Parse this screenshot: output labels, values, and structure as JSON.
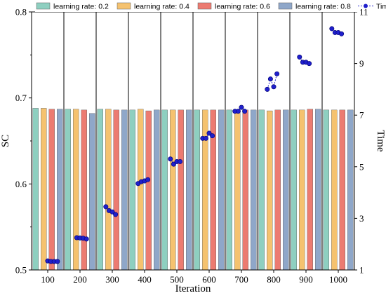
{
  "chart_data": {
    "type": "bar",
    "xlabel": "Iteration",
    "ylabel": "SC",
    "y2label": "Time",
    "categories": [
      "100",
      "200",
      "300",
      "400",
      "500",
      "600",
      "700",
      "800",
      "900",
      "1000"
    ],
    "ylim": [
      0.5,
      0.8
    ],
    "yticks": [
      "0.5",
      "0.6",
      "0.7",
      "0.8"
    ],
    "y2lim": [
      1,
      11
    ],
    "y2ticks": [
      "1",
      "3",
      "5",
      "7",
      "9",
      "11"
    ],
    "grid": false,
    "legend_position": "top",
    "series": [
      {
        "name": "learning rate: 0.2",
        "color": "#8ecfc0",
        "values": [
          0.688,
          0.687,
          0.687,
          0.686,
          0.686,
          0.686,
          0.686,
          0.686,
          0.686,
          0.686
        ]
      },
      {
        "name": "learning rate: 0.4",
        "color": "#f5c26f",
        "values": [
          0.688,
          0.687,
          0.687,
          0.687,
          0.686,
          0.686,
          0.686,
          0.685,
          0.686,
          0.686
        ]
      },
      {
        "name": "learning rate: 0.6",
        "color": "#ec7b71",
        "values": [
          0.687,
          0.686,
          0.686,
          0.685,
          0.686,
          0.686,
          0.686,
          0.686,
          0.687,
          0.686
        ]
      },
      {
        "name": "learning rate: 0.8",
        "color": "#8fa7c9",
        "values": [
          0.687,
          0.682,
          0.686,
          0.686,
          0.686,
          0.686,
          0.686,
          0.686,
          0.687,
          0.686
        ]
      }
    ],
    "time_series": {
      "name": "Time",
      "color": "#1f1fcc",
      "points": [
        {
          "x": 1,
          "y": 1.35
        },
        {
          "x": 1.1,
          "y": 1.33
        },
        {
          "x": 1.2,
          "y": 1.33
        },
        {
          "x": 1.3,
          "y": 1.33
        },
        {
          "x": 1.9,
          "y": 2.25
        },
        {
          "x": 2.0,
          "y": 2.24
        },
        {
          "x": 2.1,
          "y": 2.23
        },
        {
          "x": 2.2,
          "y": 2.2
        },
        {
          "x": 2.8,
          "y": 3.45
        },
        {
          "x": 2.9,
          "y": 3.3
        },
        {
          "x": 3.0,
          "y": 3.25
        },
        {
          "x": 3.1,
          "y": 3.15
        },
        {
          "x": 3.8,
          "y": 4.35
        },
        {
          "x": 3.9,
          "y": 4.42
        },
        {
          "x": 4.0,
          "y": 4.45
        },
        {
          "x": 4.1,
          "y": 4.5
        },
        {
          "x": 4.8,
          "y": 5.3
        },
        {
          "x": 4.9,
          "y": 5.1
        },
        {
          "x": 5.0,
          "y": 5.2
        },
        {
          "x": 5.1,
          "y": 5.2
        },
        {
          "x": 5.8,
          "y": 6.1
        },
        {
          "x": 5.9,
          "y": 6.1
        },
        {
          "x": 6.0,
          "y": 6.3
        },
        {
          "x": 6.1,
          "y": 6.2
        },
        {
          "x": 6.8,
          "y": 7.15
        },
        {
          "x": 6.9,
          "y": 7.15
        },
        {
          "x": 7.0,
          "y": 7.3
        },
        {
          "x": 7.1,
          "y": 7.15
        },
        {
          "x": 7.8,
          "y": 8.0
        },
        {
          "x": 7.9,
          "y": 8.4
        },
        {
          "x": 8.0,
          "y": 8.1
        },
        {
          "x": 8.1,
          "y": 8.6
        },
        {
          "x": 8.8,
          "y": 9.25
        },
        {
          "x": 8.9,
          "y": 9.05
        },
        {
          "x": 9.0,
          "y": 9.05
        },
        {
          "x": 9.1,
          "y": 9.0
        },
        {
          "x": 9.8,
          "y": 10.35
        },
        {
          "x": 9.9,
          "y": 10.2
        },
        {
          "x": 10.0,
          "y": 10.2
        },
        {
          "x": 10.1,
          "y": 10.15
        }
      ]
    }
  }
}
